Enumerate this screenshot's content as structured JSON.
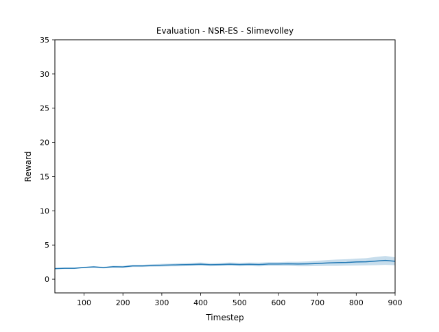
{
  "chart_data": {
    "type": "line",
    "title": "Evaluation - NSR-ES - Slimevolley",
    "xlabel": "Timestep",
    "ylabel": "Reward",
    "xlim": [
      25,
      900
    ],
    "ylim": [
      -2,
      35
    ],
    "xticks": [
      100,
      200,
      300,
      400,
      500,
      600,
      700,
      800,
      900
    ],
    "yticks": [
      0,
      5,
      10,
      15,
      20,
      25,
      30,
      35
    ],
    "grid": false,
    "legend": "none",
    "colors": {
      "line": "#1f77b4",
      "band": "#1f77b4"
    },
    "series": [
      {
        "x": [
          25,
          50,
          75,
          100,
          125,
          150,
          175,
          200,
          225,
          250,
          275,
          300,
          325,
          350,
          375,
          400,
          425,
          450,
          475,
          500,
          525,
          550,
          575,
          600,
          625,
          650,
          675,
          700,
          725,
          750,
          775,
          800,
          825,
          850,
          875,
          900
        ],
        "y": [
          1.55,
          1.6,
          1.6,
          1.72,
          1.8,
          1.7,
          1.82,
          1.8,
          1.95,
          1.95,
          2.0,
          2.05,
          2.08,
          2.12,
          2.15,
          2.2,
          2.12,
          2.15,
          2.2,
          2.15,
          2.18,
          2.15,
          2.22,
          2.22,
          2.25,
          2.22,
          2.25,
          2.3,
          2.38,
          2.42,
          2.45,
          2.52,
          2.55,
          2.65,
          2.75,
          2.62
        ],
        "lower": [
          1.45,
          1.5,
          1.5,
          1.62,
          1.68,
          1.58,
          1.68,
          1.65,
          1.8,
          1.8,
          1.82,
          1.85,
          1.88,
          1.9,
          1.92,
          1.95,
          1.9,
          1.92,
          1.95,
          1.9,
          1.92,
          1.88,
          1.95,
          1.95,
          1.95,
          1.9,
          1.9,
          1.92,
          1.95,
          1.95,
          1.98,
          2.0,
          2.02,
          2.05,
          2.1,
          2.05
        ],
        "upper": [
          1.65,
          1.7,
          1.7,
          1.82,
          1.92,
          1.82,
          1.96,
          1.95,
          2.1,
          2.1,
          2.18,
          2.25,
          2.28,
          2.34,
          2.38,
          2.45,
          2.34,
          2.38,
          2.45,
          2.4,
          2.44,
          2.42,
          2.5,
          2.5,
          2.55,
          2.55,
          2.6,
          2.7,
          2.8,
          2.88,
          2.92,
          3.02,
          3.08,
          3.25,
          3.4,
          3.2
        ]
      }
    ]
  }
}
